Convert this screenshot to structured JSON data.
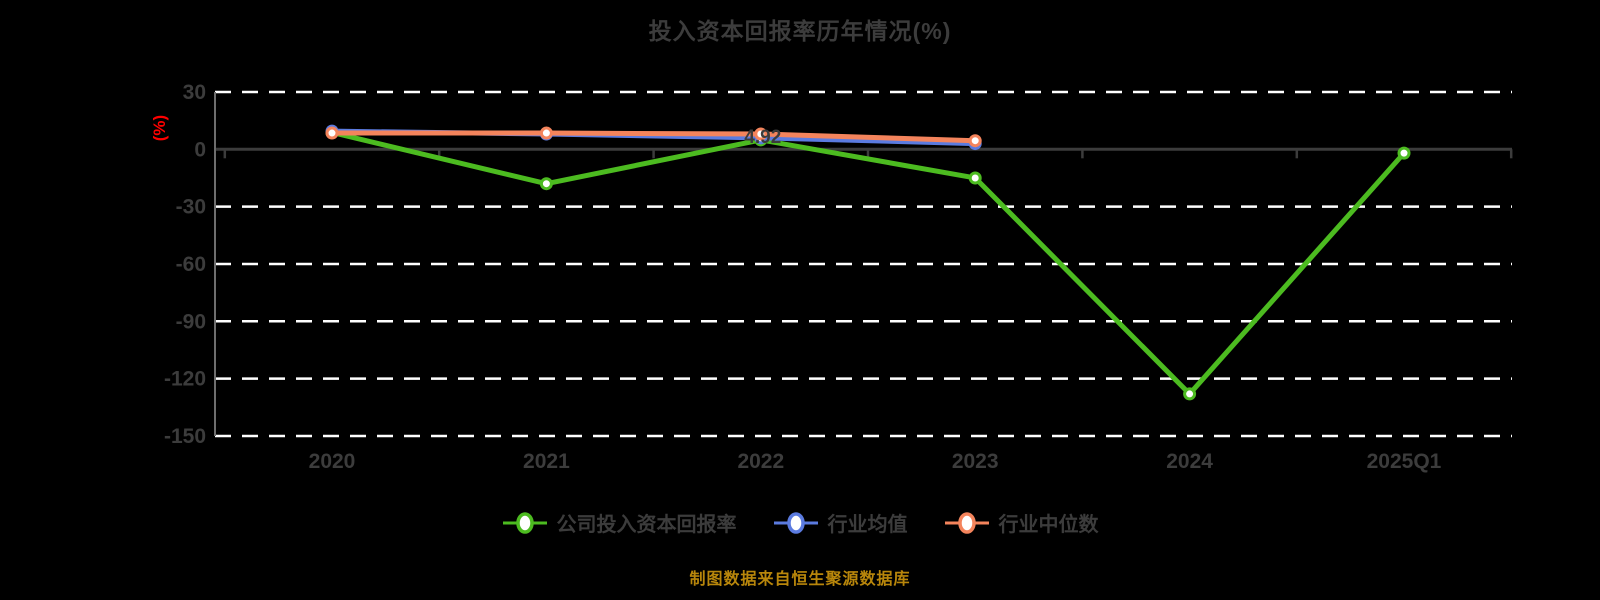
{
  "title": "投入资本回报率历年情况(%)",
  "caption": "制图数据来自恒生聚源数据库",
  "y_axis": {
    "unit_label": "(%)",
    "ticks": [
      30,
      0,
      -30,
      -60,
      -90,
      -120,
      -150
    ]
  },
  "chart_data": {
    "type": "line",
    "title": "投入资本回报率历年情况(%)",
    "ylabel": "(%)",
    "ylim": [
      -150,
      30
    ],
    "yticks": [
      30,
      0,
      -30,
      -60,
      -90,
      -120,
      -150
    ],
    "grid": "horizontal-white-dashed",
    "legend_position": "bottom",
    "categories": [
      "2020",
      "2021",
      "2022",
      "2023",
      "2024",
      "2025Q1"
    ],
    "series": [
      {
        "id": "company-roic",
        "name": "公司投入资本回报率",
        "color": "#4CBB20",
        "values": [
          8.8,
          -18,
          4.92,
          -15,
          -128,
          -2
        ]
      },
      {
        "id": "industry-mean",
        "name": "行业均值",
        "color": "#5B7BE0",
        "values": [
          9.5,
          8,
          6,
          3,
          null,
          null
        ]
      },
      {
        "id": "industry-median",
        "name": "行业中位数",
        "color": "#F4845C",
        "values": [
          8.5,
          8.5,
          8,
          4.5,
          null,
          null
        ]
      }
    ],
    "point_labels": [
      {
        "series": 0,
        "index": 2,
        "text": "4.92"
      }
    ]
  },
  "colors": {
    "background": "#000000",
    "title_text": "#3C3C3C",
    "axis_text": "#3C3C3C",
    "unit_label": "#FF0000",
    "gridline": "#FFFFFF",
    "zero_line": "#3C3C3C",
    "axis_line": "#6E6E6E",
    "caption": "#B8860B",
    "marker_fill": "#FFFFFF"
  }
}
